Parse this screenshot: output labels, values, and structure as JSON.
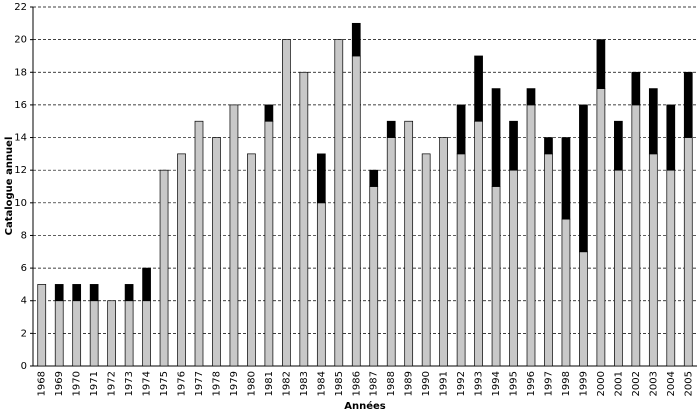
{
  "chart_data": {
    "type": "stacked-bar",
    "x_label": "Années",
    "y_label": "Catalogue annuel",
    "categories": [
      "1968",
      "1969",
      "1970",
      "1971",
      "1972",
      "1973",
      "1974",
      "1975",
      "1976",
      "1977",
      "1978",
      "1979",
      "1980",
      "1981",
      "1982",
      "1983",
      "1984",
      "1985",
      "1986",
      "1987",
      "1988",
      "1989",
      "1990",
      "1991",
      "1992",
      "1993",
      "1994",
      "1995",
      "1996",
      "1997",
      "1998",
      "1999",
      "2000",
      "2001",
      "2002",
      "2003",
      "2004",
      "2005"
    ],
    "series": [
      {
        "color": "#c8c8c8",
        "values": [
          5,
          4,
          4,
          4,
          4,
          4,
          4,
          12,
          13,
          15,
          14,
          16,
          13,
          15,
          20,
          18,
          10,
          20,
          19,
          11,
          14,
          15,
          13,
          14,
          13,
          15,
          11,
          12,
          16,
          13,
          9,
          7,
          17,
          12,
          16,
          13,
          12,
          14
        ]
      },
      {
        "color": "#000000",
        "values": [
          0,
          1,
          1,
          1,
          0,
          1,
          2,
          0,
          0,
          0,
          0,
          0,
          0,
          1,
          0,
          0,
          3,
          0,
          2,
          1,
          1,
          0,
          0,
          0,
          3,
          4,
          6,
          3,
          1,
          1,
          5,
          9,
          3,
          3,
          2,
          4,
          4,
          4
        ]
      }
    ],
    "ylim": [
      0,
      22
    ],
    "yticks": [
      0,
      2,
      4,
      6,
      8,
      10,
      12,
      14,
      16,
      18,
      20,
      22
    ],
    "grid": true
  }
}
